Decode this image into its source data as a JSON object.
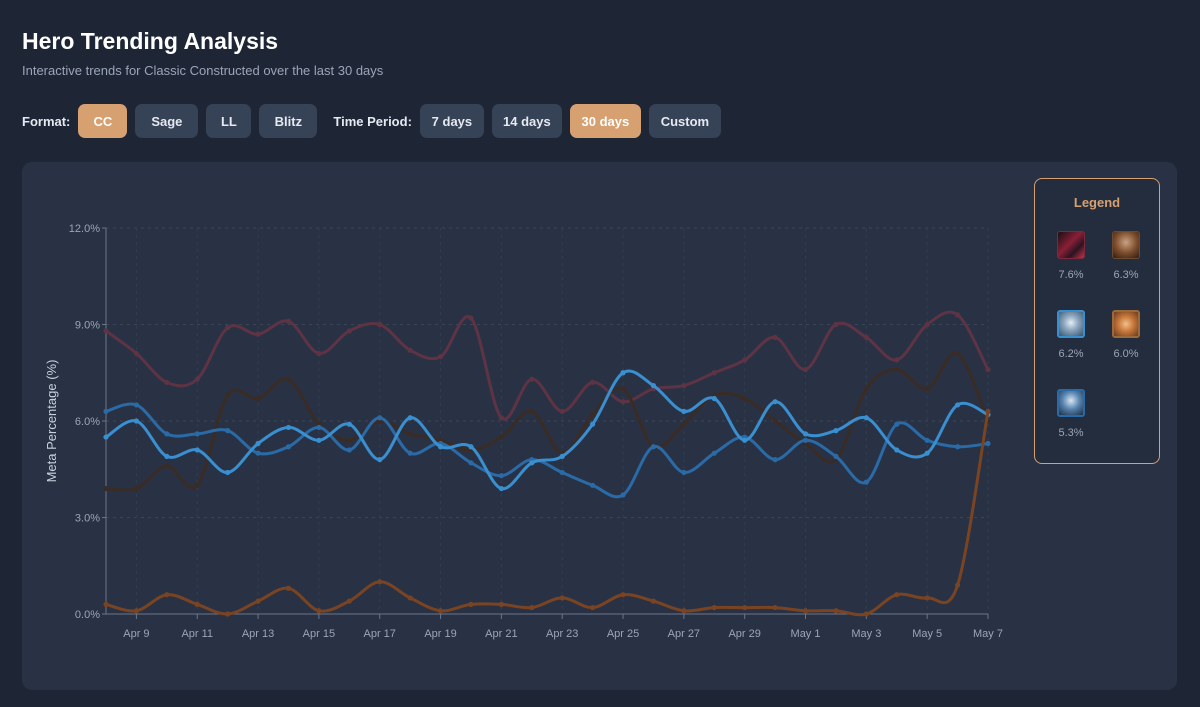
{
  "header": {
    "title": "Hero Trending Analysis",
    "subtitle": "Interactive trends for Classic Constructed over the last 30 days"
  },
  "controls": {
    "format_label": "Format:",
    "formats": [
      "CC",
      "Sage",
      "LL",
      "Blitz"
    ],
    "active_format": "CC",
    "period_label": "Time Period:",
    "periods": [
      "7 days",
      "14 days",
      "30 days",
      "Custom"
    ],
    "active_period": "30 days"
  },
  "legend": {
    "title": "Legend",
    "items": [
      {
        "icon": "crimson-hero-portrait-icon",
        "pct": "7.6%",
        "color": "#5e3344"
      },
      {
        "icon": "bronze-hero-portrait-icon",
        "pct": "6.3%",
        "color": "#7a4422"
      },
      {
        "icon": "silver-hero-portrait-icon",
        "pct": "6.2%",
        "color": "#3a8fd0"
      },
      {
        "icon": "amber-hero-portrait-icon",
        "pct": "6.0%",
        "color": "#3a2c24"
      },
      {
        "icon": "azure-hero-portrait-icon",
        "pct": "5.3%",
        "color": "#2a6aa6"
      }
    ]
  },
  "chart_data": {
    "type": "line",
    "ylabel": "Meta Percentage (%)",
    "ylim": [
      0,
      12
    ],
    "yticks": [
      "0.0%",
      "3.0%",
      "6.0%",
      "9.0%",
      "12.0%"
    ],
    "x": [
      "Apr 8",
      "Apr 9",
      "Apr 10",
      "Apr 11",
      "Apr 12",
      "Apr 13",
      "Apr 14",
      "Apr 15",
      "Apr 16",
      "Apr 17",
      "Apr 18",
      "Apr 19",
      "Apr 20",
      "Apr 21",
      "Apr 22",
      "Apr 23",
      "Apr 24",
      "Apr 25",
      "Apr 26",
      "Apr 27",
      "Apr 28",
      "Apr 29",
      "Apr 30",
      "May 1",
      "May 2",
      "May 3",
      "May 4",
      "May 5",
      "May 6",
      "May 7"
    ],
    "xtick_labels": [
      "Apr 9",
      "Apr 11",
      "Apr 13",
      "Apr 15",
      "Apr 17",
      "Apr 19",
      "Apr 21",
      "Apr 23",
      "Apr 25",
      "Apr 27",
      "Apr 29",
      "May 1",
      "May 3",
      "May 5",
      "May 7"
    ],
    "grid": true,
    "legend_position": "right",
    "series": [
      {
        "color": "#5e3344",
        "values": [
          8.8,
          8.1,
          7.2,
          7.3,
          8.9,
          8.7,
          9.1,
          8.1,
          8.8,
          9.0,
          8.2,
          8.0,
          9.2,
          6.1,
          7.3,
          6.3,
          7.2,
          6.6,
          7.0,
          7.1,
          7.5,
          7.9,
          8.6,
          7.6,
          9.0,
          8.6,
          7.9,
          9.0,
          9.3,
          7.6
        ]
      },
      {
        "color": "#3a2c24",
        "values": [
          3.9,
          3.9,
          4.6,
          4.0,
          6.8,
          6.7,
          7.3,
          5.9,
          5.4,
          6.0,
          5.6,
          5.4,
          5.1,
          5.5,
          6.3,
          5.0,
          6.2,
          7.0,
          5.2,
          5.9,
          6.8,
          6.7,
          6.0,
          5.3,
          4.8,
          7.0,
          7.6,
          7.0,
          8.1,
          6.0
        ]
      },
      {
        "color": "#2a6aa6",
        "values": [
          6.3,
          6.5,
          5.6,
          5.6,
          5.7,
          5.0,
          5.2,
          5.8,
          5.1,
          6.1,
          5.0,
          5.3,
          4.7,
          4.3,
          4.8,
          4.4,
          4.0,
          3.7,
          5.2,
          4.4,
          5.0,
          5.5,
          4.8,
          5.4,
          4.9,
          4.1,
          5.9,
          5.4,
          5.2,
          5.3
        ]
      },
      {
        "color": "#3a8fd0",
        "values": [
          5.5,
          6.0,
          4.9,
          5.1,
          4.4,
          5.3,
          5.8,
          5.4,
          5.9,
          4.8,
          6.1,
          5.2,
          5.2,
          3.9,
          4.7,
          4.9,
          5.9,
          7.5,
          7.1,
          6.3,
          6.7,
          5.4,
          6.6,
          5.6,
          5.7,
          6.1,
          5.1,
          5.0,
          6.5,
          6.2
        ]
      },
      {
        "color": "#7a4422",
        "values": [
          0.3,
          0.1,
          0.6,
          0.3,
          0.0,
          0.4,
          0.8,
          0.1,
          0.4,
          1.0,
          0.5,
          0.1,
          0.3,
          0.3,
          0.2,
          0.5,
          0.2,
          0.6,
          0.4,
          0.1,
          0.2,
          0.2,
          0.2,
          0.1,
          0.1,
          0.0,
          0.6,
          0.5,
          0.9,
          6.3
        ]
      }
    ]
  }
}
